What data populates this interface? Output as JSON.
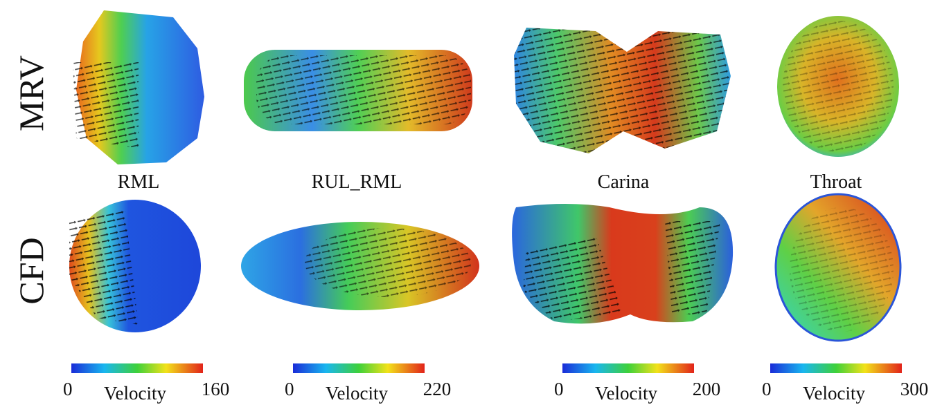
{
  "row_labels": [
    "MRV",
    "CFD"
  ],
  "column_labels": [
    "RML",
    "RUL_RML",
    "Carina",
    "Throat"
  ],
  "colorbars": [
    {
      "min": 0,
      "label": "Velocity",
      "max": 160
    },
    {
      "min": 0,
      "label": "Velocity",
      "max": 220
    },
    {
      "min": 0,
      "label": "Velocity",
      "max": 200
    },
    {
      "min": 0,
      "label": "Velocity",
      "max": 300
    }
  ]
}
